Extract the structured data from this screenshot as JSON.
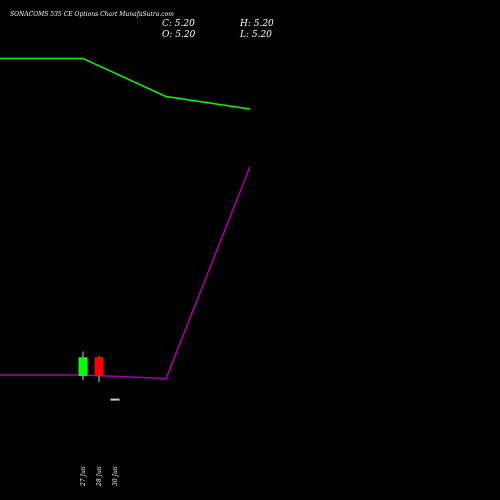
{
  "chart_data": {
    "type": "candlestick",
    "title": "SONACOMS 535 CE Options Chart MunafaSutra.com",
    "ohlc": {
      "close_label": "C: 5.20",
      "high_label": "H: 5.20",
      "open_label": "O: 5.20",
      "low_label": "L: 5.20"
    },
    "categories": [
      "27 Jun",
      "28 Jun",
      "30 Jun"
    ],
    "candles": [
      {
        "date": "27 Jun",
        "open": 6.36,
        "high": 7.62,
        "low": 6.15,
        "close": 7.32,
        "color": "#00ff00"
      },
      {
        "date": "28 Jun",
        "open": 7.32,
        "high": 7.38,
        "low": 6.03,
        "close": 6.38,
        "color": "#ff0000"
      },
      {
        "date": "30 Jun",
        "open": 5.2,
        "high": 5.2,
        "low": 5.2,
        "close": 5.2,
        "color": "#cccccc"
      }
    ],
    "price_range": [
      0,
      20
    ],
    "lines": [
      {
        "color": "#00ff00",
        "x": [
          0,
          1,
          2,
          3
        ],
        "values": [
          0.883,
          0.883,
          0.807,
          0.782
        ]
      },
      {
        "color": "#aa00aa",
        "x": [
          0,
          1,
          2,
          3
        ],
        "values": [
          0.25,
          0.25,
          0.243,
          0.667
        ]
      }
    ],
    "grid": false,
    "legend": "none"
  }
}
